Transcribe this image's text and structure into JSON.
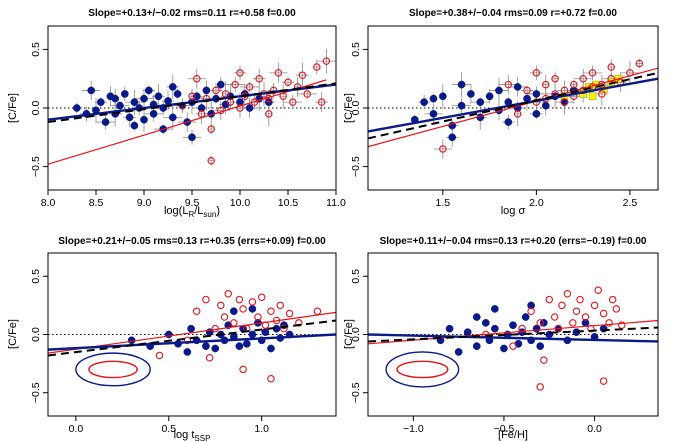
{
  "chart_data": [
    {
      "type": "scatter",
      "title": "Slope=+0.13+/−0.02  rms=0.11  r=+0.58  f=0.00",
      "xlabel_main": "log(L",
      "xlabel_sub1": "R",
      "xlabel_mid": "/L",
      "xlabel_sub2": "sun",
      "xlabel_end": ")",
      "ylabel": "[C/Fe]",
      "xlim": [
        8.0,
        11.0
      ],
      "ylim": [
        -0.7,
        0.7
      ],
      "xticks": [
        8.0,
        8.5,
        9.0,
        9.5,
        10.0,
        10.5,
        11.0
      ],
      "xticklabels": [
        "8.0",
        "8.5",
        "9.0",
        "9.5",
        "10.0",
        "10.5",
        "11.0"
      ],
      "yticks": [
        -0.5,
        0.0,
        0.5
      ],
      "yticklabels": [
        "−0.5",
        "0.0",
        "0.5"
      ],
      "errorbars": true,
      "blue_points": [
        [
          8.3,
          0.0
        ],
        [
          8.4,
          -0.05
        ],
        [
          8.45,
          0.15
        ],
        [
          8.5,
          -0.02
        ],
        [
          8.55,
          0.05
        ],
        [
          8.6,
          -0.12
        ],
        [
          8.65,
          0.1
        ],
        [
          8.7,
          -0.05
        ],
        [
          8.75,
          0.02
        ],
        [
          8.8,
          0.12
        ],
        [
          8.85,
          -0.08
        ],
        [
          8.9,
          0.05
        ],
        [
          8.9,
          -0.15
        ],
        [
          8.95,
          0.0
        ],
        [
          9.0,
          0.08
        ],
        [
          9.0,
          -0.1
        ],
        [
          9.05,
          0.15
        ],
        [
          9.1,
          -0.05
        ],
        [
          9.1,
          0.03
        ],
        [
          9.15,
          0.1
        ],
        [
          9.2,
          -0.18
        ],
        [
          9.2,
          0.0
        ],
        [
          9.25,
          0.06
        ],
        [
          9.3,
          -0.08
        ],
        [
          9.35,
          0.12
        ],
        [
          9.4,
          0.02
        ],
        [
          9.45,
          -0.12
        ],
        [
          9.5,
          0.05
        ],
        [
          9.55,
          0.1
        ],
        [
          9.6,
          0.0
        ],
        [
          9.65,
          0.15
        ],
        [
          9.7,
          -0.05
        ],
        [
          9.75,
          0.08
        ],
        [
          9.8,
          0.2
        ],
        [
          9.85,
          0.03
        ],
        [
          9.9,
          0.1
        ],
        [
          10.0,
          0.05
        ],
        [
          10.05,
          0.12
        ],
        [
          10.1,
          0.0
        ],
        [
          10.2,
          0.08
        ],
        [
          10.3,
          0.05
        ],
        [
          9.5,
          -0.25
        ],
        [
          8.7,
          0.08
        ],
        [
          9.3,
          0.18
        ]
      ],
      "red_points": [
        [
          9.4,
          0.02
        ],
        [
          9.5,
          0.1
        ],
        [
          9.6,
          -0.05
        ],
        [
          9.65,
          0.08
        ],
        [
          9.7,
          -0.18
        ],
        [
          9.75,
          0.15
        ],
        [
          9.8,
          -0.02
        ],
        [
          9.85,
          0.12
        ],
        [
          9.9,
          0.05
        ],
        [
          9.95,
          0.2
        ],
        [
          10.0,
          0.0
        ],
        [
          10.05,
          0.1
        ],
        [
          10.1,
          0.18
        ],
        [
          10.15,
          0.05
        ],
        [
          10.2,
          0.25
        ],
        [
          10.25,
          0.12
        ],
        [
          10.3,
          0.08
        ],
        [
          10.35,
          0.15
        ],
        [
          10.4,
          0.3
        ],
        [
          10.45,
          0.1
        ],
        [
          10.5,
          0.22
        ],
        [
          10.55,
          0.05
        ],
        [
          10.6,
          0.18
        ],
        [
          10.65,
          0.28
        ],
        [
          10.7,
          0.12
        ],
        [
          10.8,
          0.35
        ],
        [
          10.85,
          0.05
        ],
        [
          10.9,
          0.4
        ],
        [
          9.7,
          -0.45
        ],
        [
          10.0,
          0.3
        ],
        [
          9.55,
          0.25
        ],
        [
          10.3,
          -0.05
        ]
      ],
      "fits": {
        "red": [
          [
            8.0,
            -0.48
          ],
          [
            10.9,
            0.24
          ]
        ],
        "blue": [
          [
            8.0,
            -0.1
          ],
          [
            11.0,
            0.2
          ]
        ],
        "black": [
          [
            8.0,
            -0.12
          ],
          [
            11.0,
            0.21
          ]
        ]
      }
    },
    {
      "type": "scatter",
      "title": "Slope=+0.38+/−0.04  rms=0.09  r=+0.72  f=0.00",
      "xlabel_main": "log σ",
      "ylabel": "[C/Fe]",
      "xlim": [
        1.1,
        2.65
      ],
      "ylim": [
        -0.7,
        0.7
      ],
      "xticks": [
        1.5,
        2.0,
        2.5
      ],
      "xticklabels": [
        "1.5",
        "2.0",
        "2.5"
      ],
      "yticks": [
        -0.5,
        0.0,
        0.5
      ],
      "yticklabels": [
        "−0.5",
        "0.0",
        "0.5"
      ],
      "errorbars": true,
      "blue_points": [
        [
          1.35,
          -0.1
        ],
        [
          1.4,
          0.05
        ],
        [
          1.45,
          -0.05
        ],
        [
          1.5,
          0.1
        ],
        [
          1.55,
          -0.15
        ],
        [
          1.6,
          0.02
        ],
        [
          1.65,
          0.12
        ],
        [
          1.7,
          -0.08
        ],
        [
          1.7,
          0.05
        ],
        [
          1.75,
          0.1
        ],
        [
          1.8,
          -0.02
        ],
        [
          1.8,
          0.15
        ],
        [
          1.85,
          0.05
        ],
        [
          1.9,
          0.0
        ],
        [
          1.9,
          0.18
        ],
        [
          1.95,
          0.08
        ],
        [
          2.0,
          -0.05
        ],
        [
          2.0,
          0.12
        ],
        [
          2.05,
          0.02
        ],
        [
          2.1,
          0.1
        ],
        [
          2.15,
          0.05
        ],
        [
          2.2,
          0.15
        ],
        [
          1.55,
          -0.25
        ],
        [
          1.6,
          0.2
        ],
        [
          1.45,
          0.08
        ],
        [
          1.85,
          -0.12
        ]
      ],
      "red_points": [
        [
          1.5,
          -0.35
        ],
        [
          1.9,
          -0.05
        ],
        [
          1.95,
          0.15
        ],
        [
          2.0,
          0.05
        ],
        [
          2.05,
          0.2
        ],
        [
          2.05,
          0.08
        ],
        [
          2.1,
          0.12
        ],
        [
          2.1,
          0.25
        ],
        [
          2.15,
          0.15
        ],
        [
          2.15,
          0.05
        ],
        [
          2.2,
          0.2
        ],
        [
          2.2,
          0.1
        ],
        [
          2.25,
          0.25
        ],
        [
          2.25,
          0.15
        ],
        [
          2.3,
          0.18
        ],
        [
          2.3,
          0.3
        ],
        [
          2.35,
          0.2
        ],
        [
          2.35,
          0.12
        ],
        [
          2.4,
          0.25
        ],
        [
          2.4,
          0.35
        ],
        [
          2.45,
          0.22
        ],
        [
          2.5,
          0.3
        ],
        [
          2.55,
          0.38
        ],
        [
          2.0,
          0.3
        ],
        [
          1.85,
          0.2
        ]
      ],
      "yellow_points": [
        [
          2.15,
          0.1
        ],
        [
          2.2,
          0.14
        ],
        [
          2.25,
          0.12
        ],
        [
          2.28,
          0.18
        ],
        [
          2.32,
          0.2
        ],
        [
          2.36,
          0.16
        ],
        [
          2.4,
          0.22
        ],
        [
          2.44,
          0.25
        ],
        [
          2.3,
          0.1
        ]
      ],
      "fits": {
        "red": [
          [
            1.1,
            -0.33
          ],
          [
            2.65,
            0.34
          ]
        ],
        "blue": [
          [
            1.1,
            -0.2
          ],
          [
            2.65,
            0.25
          ]
        ],
        "black": [
          [
            1.1,
            -0.26
          ],
          [
            2.65,
            0.3
          ]
        ]
      }
    },
    {
      "type": "scatter",
      "title": "Slope=+0.21+/−0.05  rms=0.13  r=+0.35 (errs=+0.09)  f=0.00",
      "xlabel_main": "log t",
      "xlabel_sub1": "SSP",
      "ylabel": "[C/Fe]",
      "xlim": [
        -0.15,
        1.4
      ],
      "ylim": [
        -0.7,
        0.7
      ],
      "xticks": [
        0.0,
        0.5,
        1.0
      ],
      "xticklabels": [
        "0.0",
        "0.5",
        "1.0"
      ],
      "yticks": [
        -0.5,
        0.0,
        0.5
      ],
      "yticklabels": [
        "−0.5",
        "0.0",
        "0.5"
      ],
      "errorbars": false,
      "ellipses": {
        "center": [
          0.2,
          -0.3
        ],
        "blue_radii": [
          0.2,
          0.14
        ],
        "red_radii": [
          0.13,
          0.07
        ]
      },
      "blue_points": [
        [
          0.5,
          0.0
        ],
        [
          0.55,
          -0.08
        ],
        [
          0.6,
          -0.15
        ],
        [
          0.62,
          0.05
        ],
        [
          0.65,
          -0.05
        ],
        [
          0.7,
          -0.1
        ],
        [
          0.72,
          0.02
        ],
        [
          0.75,
          -0.12
        ],
        [
          0.78,
          0.0
        ],
        [
          0.8,
          -0.05
        ],
        [
          0.82,
          0.08
        ],
        [
          0.85,
          -0.02
        ],
        [
          0.88,
          -0.1
        ],
        [
          0.9,
          0.05
        ],
        [
          0.92,
          -0.08
        ],
        [
          0.95,
          0.0
        ],
        [
          0.98,
          0.1
        ],
        [
          1.0,
          -0.05
        ],
        [
          1.02,
          0.02
        ],
        [
          1.05,
          -0.12
        ],
        [
          1.08,
          0.05
        ],
        [
          1.1,
          -0.03
        ],
        [
          1.12,
          0.08
        ],
        [
          1.15,
          0.0
        ],
        [
          0.3,
          -0.05
        ],
        [
          0.4,
          -0.1
        ],
        [
          0.85,
          0.2
        ],
        [
          0.95,
          0.22
        ]
      ],
      "red_points": [
        [
          0.45,
          -0.18
        ],
        [
          0.6,
          -0.05
        ],
        [
          0.65,
          0.2
        ],
        [
          0.7,
          0.3
        ],
        [
          0.75,
          0.05
        ],
        [
          0.78,
          0.25
        ],
        [
          0.8,
          0.15
        ],
        [
          0.82,
          0.35
        ],
        [
          0.85,
          0.1
        ],
        [
          0.88,
          0.3
        ],
        [
          0.9,
          0.22
        ],
        [
          0.92,
          0.05
        ],
        [
          0.95,
          0.28
        ],
        [
          0.98,
          0.15
        ],
        [
          1.0,
          0.32
        ],
        [
          1.02,
          0.08
        ],
        [
          1.05,
          0.2
        ],
        [
          1.08,
          0.12
        ],
        [
          1.1,
          0.25
        ],
        [
          1.12,
          0.05
        ],
        [
          1.15,
          0.18
        ],
        [
          1.05,
          -0.38
        ],
        [
          0.9,
          -0.3
        ],
        [
          0.72,
          -0.2
        ],
        [
          1.2,
          0.1
        ],
        [
          1.3,
          0.2
        ]
      ],
      "fits": {
        "red": [
          [
            -0.15,
            -0.16
          ],
          [
            1.4,
            0.19
          ]
        ],
        "blue": [
          [
            -0.15,
            -0.13
          ],
          [
            1.4,
            0.0
          ]
        ],
        "black": [
          [
            -0.15,
            -0.18
          ],
          [
            1.4,
            0.12
          ]
        ]
      }
    },
    {
      "type": "scatter",
      "title": "Slope=+0.11+/−0.04  rms=0.13  r=+0.20 (errs=−0.19)  f=0.00",
      "xlabel_main": "[Fe/H]",
      "ylabel": "[C/Fe]",
      "xlim": [
        -1.25,
        0.35
      ],
      "ylim": [
        -0.7,
        0.7
      ],
      "xticks": [
        -1.0,
        -0.5,
        0.0
      ],
      "xticklabels": [
        "−1.0",
        "−0.5",
        "0.0"
      ],
      "yticks": [
        -0.5,
        0.0,
        0.5
      ],
      "yticklabels": [
        "−0.5",
        "0.0",
        "0.5"
      ],
      "errorbars": false,
      "ellipses": {
        "center": [
          -0.95,
          -0.3
        ],
        "blue_radii": [
          0.2,
          0.15
        ],
        "red_radii": [
          0.14,
          0.07
        ]
      },
      "blue_points": [
        [
          -0.85,
          -0.05
        ],
        [
          -0.8,
          0.05
        ],
        [
          -0.75,
          -0.15
        ],
        [
          -0.7,
          0.02
        ],
        [
          -0.65,
          -0.1
        ],
        [
          -0.6,
          0.1
        ],
        [
          -0.58,
          -0.05
        ],
        [
          -0.55,
          0.05
        ],
        [
          -0.5,
          -0.12
        ],
        [
          -0.48,
          0.0
        ],
        [
          -0.45,
          0.08
        ],
        [
          -0.42,
          -0.08
        ],
        [
          -0.4,
          0.02
        ],
        [
          -0.38,
          0.15
        ],
        [
          -0.35,
          -0.05
        ],
        [
          -0.32,
          0.05
        ],
        [
          -0.3,
          -0.1
        ],
        [
          -0.28,
          0.1
        ],
        [
          -0.25,
          0.0
        ],
        [
          -0.2,
          0.05
        ],
        [
          -0.15,
          -0.05
        ],
        [
          -0.1,
          0.02
        ],
        [
          -0.05,
          0.1
        ],
        [
          0.0,
          -0.02
        ],
        [
          0.05,
          0.05
        ],
        [
          -0.55,
          0.22
        ],
        [
          -0.35,
          0.25
        ],
        [
          -0.65,
          0.15
        ]
      ],
      "red_points": [
        [
          -0.45,
          -0.1
        ],
        [
          -0.4,
          0.05
        ],
        [
          -0.35,
          0.2
        ],
        [
          -0.3,
          0.1
        ],
        [
          -0.28,
          -0.22
        ],
        [
          -0.25,
          0.3
        ],
        [
          -0.22,
          0.15
        ],
        [
          -0.2,
          0.05
        ],
        [
          -0.18,
          0.25
        ],
        [
          -0.15,
          0.35
        ],
        [
          -0.12,
          0.1
        ],
        [
          -0.1,
          0.2
        ],
        [
          -0.08,
          0.3
        ],
        [
          -0.05,
          0.15
        ],
        [
          -0.02,
          0.05
        ],
        [
          0.0,
          0.25
        ],
        [
          0.02,
          0.38
        ],
        [
          0.05,
          0.18
        ],
        [
          0.08,
          0.1
        ],
        [
          0.1,
          0.3
        ],
        [
          0.12,
          0.22
        ],
        [
          0.15,
          0.08
        ],
        [
          0.05,
          -0.4
        ],
        [
          -0.3,
          -0.45
        ],
        [
          -0.6,
          0.0
        ]
      ],
      "fits": {
        "red": [
          [
            -1.25,
            -0.08
          ],
          [
            0.35,
            0.12
          ]
        ],
        "blue": [
          [
            -1.25,
            0.0
          ],
          [
            0.35,
            -0.06
          ]
        ],
        "black": [
          [
            -1.25,
            -0.06
          ],
          [
            0.35,
            0.06
          ]
        ]
      }
    }
  ],
  "colors": {
    "blue": "#0a1a8a",
    "red": "#e8131b",
    "yellow": "#f5f500",
    "errbar": "#8c8c8c",
    "black": "#000000"
  }
}
